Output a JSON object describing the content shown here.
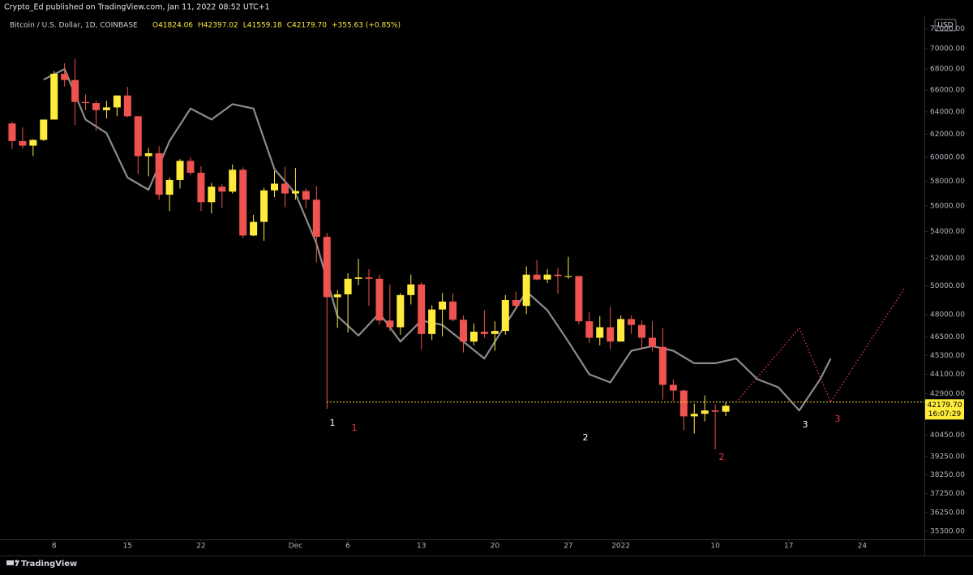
{
  "header": "Crypto_Ed published on TradingView.com, Jan 11, 2022 08:52 UTC+1",
  "footer": "TradingView",
  "chart_data": {
    "type": "candlestick",
    "symbol": "Bitcoin / U.S. Dollar, 1D, COINBASE",
    "legend": [
      "O41824.06",
      "H42397.02",
      "L41559.18",
      "C42179.70",
      "+355.63 (+0.85%)"
    ],
    "currency": "USD",
    "last_price_label": "42179.70",
    "countdown": "16:07:29",
    "log_scale": true,
    "up_color": "#ffeb3b",
    "down_color": "#ef5350",
    "x": [
      "2021-11-04",
      "2021-11-05",
      "2021-11-06",
      "2021-11-07",
      "2021-11-08",
      "2021-11-09",
      "2021-11-10",
      "2021-11-11",
      "2021-11-12",
      "2021-11-13",
      "2021-11-14",
      "2021-11-15",
      "2021-11-16",
      "2021-11-17",
      "2021-11-18",
      "2021-11-19",
      "2021-11-20",
      "2021-11-21",
      "2021-11-22",
      "2021-11-23",
      "2021-11-24",
      "2021-11-25",
      "2021-11-26",
      "2021-11-27",
      "2021-11-28",
      "2021-11-29",
      "2021-11-30",
      "2021-12-01",
      "2021-12-02",
      "2021-12-03",
      "2021-12-04",
      "2021-12-05",
      "2021-12-06",
      "2021-12-07",
      "2021-12-08",
      "2021-12-09",
      "2021-12-10",
      "2021-12-11",
      "2021-12-12",
      "2021-12-13",
      "2021-12-14",
      "2021-12-15",
      "2021-12-16",
      "2021-12-17",
      "2021-12-18",
      "2021-12-19",
      "2021-12-20",
      "2021-12-21",
      "2021-12-22",
      "2021-12-23",
      "2021-12-24",
      "2021-12-25",
      "2021-12-26",
      "2021-12-27",
      "2021-12-28",
      "2021-12-29",
      "2021-12-30",
      "2021-12-31",
      "2022-01-01",
      "2022-01-02",
      "2022-01-03",
      "2022-01-04",
      "2022-01-05",
      "2022-01-06",
      "2022-01-07",
      "2022-01-08",
      "2022-01-09",
      "2022-01-10",
      "2022-01-11"
    ],
    "open": [
      62950,
      61400,
      61000,
      61500,
      63300,
      67550,
      66950,
      64900,
      64800,
      64150,
      64400,
      65500,
      63600,
      60100,
      60350,
      56900,
      58100,
      59700,
      58700,
      56300,
      57550,
      57150,
      58950,
      53700,
      54750,
      57250,
      57800,
      57000,
      57200,
      56500,
      53600,
      49200,
      49400,
      50500,
      50600,
      50500,
      47600,
      47150,
      49350,
      50100,
      46700,
      48350,
      48900,
      47650,
      46200,
      46850,
      46700,
      46900,
      49000,
      48600,
      50800,
      50450,
      50800,
      50700,
      50700,
      47550,
      46450,
      47150,
      46200,
      47700,
      47300,
      46450,
      45850,
      43450,
      43100,
      41550,
      41700,
      41900,
      41824.06
    ],
    "high": [
      63100,
      62600,
      61550,
      63300,
      67800,
      68550,
      69000,
      65600,
      65000,
      65000,
      65500,
      66300,
      63600,
      60800,
      60950,
      58300,
      59850,
      60000,
      59250,
      57850,
      57750,
      59400,
      59150,
      55300,
      57450,
      58850,
      59200,
      59100,
      57400,
      57600,
      53900,
      49700,
      50900,
      51950,
      51200,
      50800,
      50100,
      49500,
      50800,
      50250,
      48650,
      49500,
      49450,
      47950,
      47400,
      48300,
      47550,
      49350,
      49600,
      51400,
      51850,
      51200,
      51300,
      52100,
      50700,
      48150,
      47900,
      48550,
      47950,
      47950,
      47600,
      47550,
      47100,
      43800,
      43150,
      42300,
      42800,
      42250,
      42397.02
    ],
    "low": [
      60700,
      60750,
      60100,
      61400,
      63300,
      66350,
      62800,
      64150,
      62300,
      63400,
      63600,
      63500,
      58600,
      58400,
      56500,
      55600,
      57400,
      58500,
      55600,
      55400,
      55850,
      57000,
      53500,
      53650,
      53300,
      56700,
      55900,
      56500,
      55800,
      51700,
      42000,
      47100,
      46800,
      50050,
      48600,
      47300,
      46900,
      46650,
      48700,
      45700,
      46300,
      46550,
      47550,
      45500,
      45950,
      46450,
      45600,
      46650,
      48450,
      48050,
      50400,
      50200,
      49450,
      50500,
      47350,
      46100,
      45950,
      45700,
      46200,
      46700,
      45700,
      45550,
      42550,
      42450,
      40750,
      40550,
      41250,
      39650,
      41559.18
    ],
    "close": [
      61400,
      61000,
      61500,
      63300,
      67550,
      66950,
      64900,
      64800,
      64150,
      64400,
      65500,
      63600,
      60100,
      60350,
      56900,
      58100,
      59700,
      58700,
      56300,
      57550,
      57150,
      58950,
      53700,
      54750,
      57250,
      57800,
      57000,
      57200,
      56500,
      53600,
      49200,
      49400,
      50500,
      50600,
      50500,
      47600,
      47150,
      49350,
      50100,
      46700,
      48350,
      48900,
      47650,
      46200,
      46850,
      46700,
      46900,
      49000,
      48600,
      50800,
      50450,
      50800,
      50700,
      50700,
      47550,
      46450,
      47150,
      46200,
      47700,
      47300,
      46450,
      45850,
      43450,
      43100,
      41550,
      41700,
      41900,
      41824.06,
      42179.7
    ],
    "overlay": {
      "color": "#8c8c8c",
      "x": [
        "2021-11-07",
        "2021-11-09",
        "2021-11-11",
        "2021-11-13",
        "2021-11-15",
        "2021-11-17",
        "2021-11-19",
        "2021-11-21",
        "2021-11-23",
        "2021-11-25",
        "2021-11-27",
        "2021-11-29",
        "2021-12-01",
        "2021-12-03",
        "2021-12-05",
        "2021-12-07",
        "2021-12-09",
        "2021-12-11",
        "2021-12-13",
        "2021-12-15",
        "2021-12-17",
        "2021-12-19",
        "2021-12-21",
        "2021-12-23",
        "2021-12-25",
        "2021-12-27",
        "2021-12-29",
        "2021-12-31",
        "2022-01-02",
        "2022-01-04",
        "2022-01-06",
        "2022-01-08",
        "2022-01-10",
        "2022-01-12",
        "2022-01-14",
        "2022-01-16",
        "2022-01-18",
        "2022-01-20",
        "2022-01-21"
      ],
      "values": [
        67000,
        68000,
        63300,
        62100,
        58300,
        57300,
        61400,
        64300,
        63300,
        64700,
        64300,
        59000,
        57000,
        53100,
        47900,
        46600,
        48100,
        46200,
        47600,
        47300,
        46200,
        45100,
        47300,
        49600,
        48300,
        46200,
        44100,
        43600,
        45600,
        45900,
        45600,
        44800,
        44800,
        45100,
        43800,
        43300,
        41900,
        43800,
        45100
      ]
    },
    "projection": {
      "color": "#f23645",
      "x": [
        "2022-01-12",
        "2022-01-18",
        "2022-01-21",
        "2022-01-28"
      ],
      "values": [
        42400,
        47100,
        42400,
        49800
      ]
    },
    "support_line": {
      "value": 42400,
      "from": "2021-12-04",
      "color": "#ffeb3b"
    },
    "annotations": [
      {
        "text": "1",
        "color": "#ffffff"
      },
      {
        "text": "1",
        "color": "#f23645"
      },
      {
        "text": "2",
        "color": "#ffffff"
      },
      {
        "text": "2",
        "color": "#f23645"
      },
      {
        "text": "3",
        "color": "#ffffff"
      },
      {
        "text": "3",
        "color": "#f23645"
      }
    ],
    "xlim": [
      "2021-11-03",
      "2022-01-30"
    ],
    "xticks": [
      {
        "value": "2021-11-08",
        "label": "8"
      },
      {
        "value": "2021-11-15",
        "label": "15"
      },
      {
        "value": "2021-11-22",
        "label": "22"
      },
      {
        "value": "2021-12-01",
        "label": "Dec"
      },
      {
        "value": "2021-12-06",
        "label": "6"
      },
      {
        "value": "2021-12-13",
        "label": "13"
      },
      {
        "value": "2021-12-20",
        "label": "20"
      },
      {
        "value": "2021-12-27",
        "label": "27"
      },
      {
        "value": "2022-01-01",
        "label": "2022"
      },
      {
        "value": "2022-01-10",
        "label": "10"
      },
      {
        "value": "2022-01-17",
        "label": "17"
      },
      {
        "value": "2022-01-24",
        "label": "24"
      }
    ],
    "ylim": [
      34900,
      75000
    ],
    "yticks": [
      {
        "value": 72000,
        "label": "72000.00"
      },
      {
        "value": 70000,
        "label": "70000.00"
      },
      {
        "value": 68000,
        "label": "68000.00"
      },
      {
        "value": 66000,
        "label": "66000.00"
      },
      {
        "value": 64000,
        "label": "64000.00"
      },
      {
        "value": 62000,
        "label": "62000.00"
      },
      {
        "value": 60000,
        "label": "60000.00"
      },
      {
        "value": 58000,
        "label": "58000.00"
      },
      {
        "value": 56000,
        "label": "56000.00"
      },
      {
        "value": 54000,
        "label": "54000.00"
      },
      {
        "value": 52000,
        "label": "52000.00"
      },
      {
        "value": 50000,
        "label": "50000.00"
      },
      {
        "value": 48000,
        "label": "48000.00"
      },
      {
        "value": 46500,
        "label": "46500.00"
      },
      {
        "value": 45300,
        "label": "45300.00"
      },
      {
        "value": 44100,
        "label": "44100.00"
      },
      {
        "value": 42900,
        "label": "42900.00"
      },
      {
        "value": 40450,
        "label": "40450.00"
      },
      {
        "value": 39250,
        "label": "39250.00"
      },
      {
        "value": 38250,
        "label": "38250.00"
      },
      {
        "value": 37250,
        "label": "37250.00"
      },
      {
        "value": 36250,
        "label": "36250.00"
      },
      {
        "value": 35300,
        "label": "35300.00"
      }
    ]
  }
}
